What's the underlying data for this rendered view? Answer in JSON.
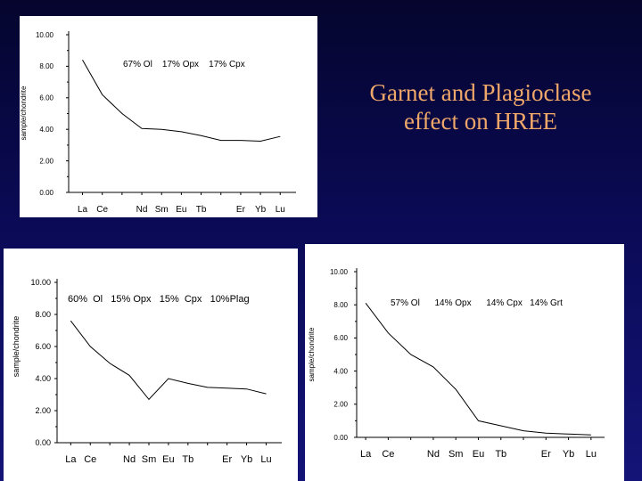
{
  "slide": {
    "title_line1": "Garnet and Plagioclase",
    "title_line2": "effect on HREE",
    "title_color": "#f0a86a"
  },
  "chart_data": [
    {
      "type": "line",
      "annotation": "67% Ol    17% Opx    17% Cpx",
      "ylabel": "sample/chondrite",
      "ylim": [
        0,
        10
      ],
      "y_ticks": [
        "10.00",
        "8.00",
        "6.00",
        "4.00",
        "2.00",
        "0.00"
      ],
      "x_tick_labels": [
        "La",
        "Ce",
        "Nd",
        "Sm",
        "Eu",
        "Tb",
        "Er",
        "Yb",
        "Lu"
      ],
      "x_tick_positions": [
        1,
        2,
        4,
        5,
        6,
        7,
        9,
        10,
        11
      ],
      "series": [
        {
          "x": [
            1,
            2,
            3,
            4,
            5,
            6,
            7,
            8,
            9,
            10,
            11
          ],
          "values": [
            8.4,
            6.2,
            5.0,
            4.05,
            4.0,
            3.85,
            3.6,
            3.3,
            3.3,
            3.25,
            3.55
          ]
        }
      ]
    },
    {
      "type": "line",
      "annotation": "60%  Ol   15% Opx   15%  Cpx   10%Plag",
      "ylabel": "sample/chondrite",
      "ylim": [
        0,
        10
      ],
      "y_ticks": [
        "10.00",
        "8.00",
        "6.00",
        "4.00",
        "2.00",
        "0.00"
      ],
      "x_tick_labels": [
        "La",
        "Ce",
        "Nd",
        "Sm",
        "Eu",
        "Tb",
        "Er",
        "Yb",
        "Lu"
      ],
      "x_tick_positions": [
        1,
        2,
        4,
        5,
        6,
        7,
        9,
        10,
        11
      ],
      "series": [
        {
          "x": [
            1,
            2,
            3,
            4,
            5,
            6,
            7,
            8,
            9,
            10,
            11
          ],
          "values": [
            7.6,
            6.0,
            4.95,
            4.2,
            2.7,
            4.0,
            3.7,
            3.45,
            3.4,
            3.35,
            3.05
          ]
        }
      ]
    },
    {
      "type": "line",
      "annotation": "57% Ol      14% Opx      14% Cpx   14% Grt",
      "ylabel": "sample/chondrite",
      "ylim": [
        0,
        10
      ],
      "y_ticks": [
        "10.00",
        "8.00",
        "6.00",
        "4.00",
        "2.00",
        "0.00"
      ],
      "x_tick_labels": [
        "La",
        "Ce",
        "Nd",
        "Sm",
        "Eu",
        "Tb",
        "Er",
        "Yb",
        "Lu"
      ],
      "x_tick_positions": [
        1,
        2,
        4,
        5,
        6,
        7,
        9,
        10,
        11
      ],
      "series": [
        {
          "x": [
            1,
            2,
            3,
            4,
            5,
            6,
            7,
            8,
            9,
            10,
            11
          ],
          "values": [
            8.1,
            6.3,
            5.0,
            4.25,
            2.9,
            1.0,
            0.7,
            0.4,
            0.25,
            0.2,
            0.15
          ]
        }
      ]
    }
  ]
}
